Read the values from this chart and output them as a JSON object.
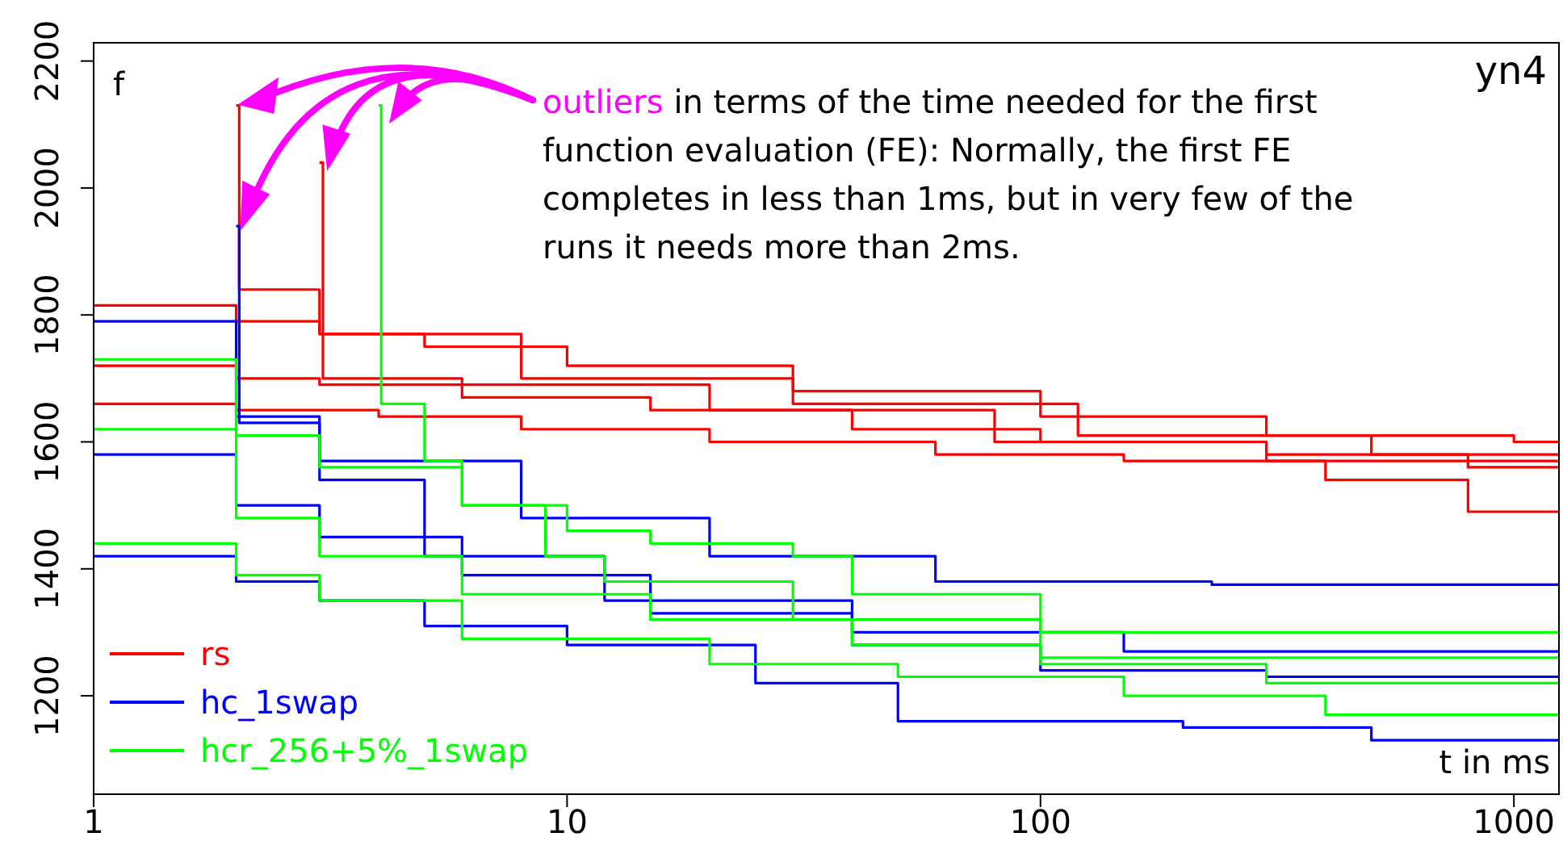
{
  "chart_data": {
    "type": "step",
    "title": "yn4",
    "xlabel": "t in ms",
    "ylabel": "f",
    "log": "x",
    "marker": "none",
    "legend": "bottom left",
    "annotations": [
      "outliers",
      "in terms of the time needed for the first function evaluation (FE): Normally, the first FE completes in less than 1ms, but in very few of the runs it needs more than 2ms."
    ],
    "xlim": [
      1,
      1250
    ],
    "xticks": [
      1,
      10,
      100,
      1000
    ],
    "ylim": [
      1045,
      2230
    ],
    "yticks": [
      1200,
      1400,
      1600,
      1800,
      2000,
      2200
    ],
    "series": [
      {
        "color": "#ff0000",
        "x": [
          1,
          2,
          3,
          5,
          10,
          30,
          100,
          300,
          1000,
          1250
        ],
        "values": [
          1815,
          1790,
          1770,
          1750,
          1720,
          1680,
          1640,
          1610,
          1600,
          1600
        ]
      },
      {
        "color": "#ff0000",
        "x": [
          1,
          2,
          3,
          6,
          15,
          40,
          100,
          300,
          800,
          1250
        ],
        "values": [
          1720,
          1700,
          1690,
          1670,
          1650,
          1620,
          1600,
          1580,
          1560,
          1560
        ]
      },
      {
        "color": "#ff0000",
        "x": [
          1,
          2,
          4,
          8,
          20,
          60,
          150,
          400,
          800,
          1250
        ],
        "values": [
          1660,
          1650,
          1640,
          1620,
          1600,
          1580,
          1570,
          1540,
          1490,
          1490
        ]
      },
      {
        "color": "#ff0000",
        "x": [
          2,
          2.03,
          3,
          8,
          30,
          120,
          500,
          1250
        ],
        "values": [
          2130,
          1840,
          1770,
          1700,
          1660,
          1610,
          1580,
          1580
        ]
      },
      {
        "name": "rs",
        "color": "#ff0000",
        "x": [
          3,
          3.05,
          6,
          20,
          80,
          300,
          1250
        ],
        "values": [
          2040,
          1700,
          1690,
          1650,
          1600,
          1570,
          1570
        ]
      },
      {
        "color": "#0000ff",
        "x": [
          1,
          2,
          3,
          8,
          20,
          60,
          200,
          230,
          1250
        ],
        "values": [
          1790,
          1640,
          1570,
          1480,
          1420,
          1380,
          1380,
          1375,
          1375
        ]
      },
      {
        "color": "#0000ff",
        "x": [
          1,
          2,
          3,
          6,
          15,
          40,
          100,
          300,
          1250
        ],
        "values": [
          1580,
          1500,
          1450,
          1390,
          1330,
          1280,
          1240,
          1230,
          1230
        ]
      },
      {
        "color": "#0000ff",
        "x": [
          1,
          2,
          3,
          5,
          10,
          25,
          50,
          200,
          500,
          1250
        ],
        "values": [
          1420,
          1380,
          1350,
          1310,
          1280,
          1220,
          1160,
          1150,
          1130,
          1130
        ]
      },
      {
        "name": "hc_1swap",
        "color": "#0000ff",
        "x": [
          2,
          2.03,
          3,
          5,
          12,
          40,
          150,
          1250
        ],
        "values": [
          1940,
          1630,
          1540,
          1420,
          1350,
          1300,
          1270,
          1270
        ]
      },
      {
        "color": "#00ff00",
        "x": [
          1,
          2,
          3,
          6,
          10,
          15,
          30,
          40,
          100,
          1250
        ],
        "values": [
          1730,
          1610,
          1560,
          1500,
          1460,
          1440,
          1420,
          1360,
          1300,
          1300
        ]
      },
      {
        "color": "#00ff00",
        "x": [
          1,
          2,
          3,
          6,
          15,
          40,
          100,
          300,
          1250
        ],
        "values": [
          1620,
          1480,
          1420,
          1360,
          1320,
          1280,
          1250,
          1220,
          1220
        ]
      },
      {
        "color": "#00ff00",
        "x": [
          1,
          2,
          3,
          6,
          20,
          50,
          150,
          400,
          1250
        ],
        "values": [
          1440,
          1390,
          1350,
          1290,
          1250,
          1230,
          1200,
          1170,
          1170
        ]
      },
      {
        "name": "hcr_256+5%_1swap",
        "color": "#00ff00",
        "x": [
          4,
          4.05,
          5,
          6,
          9,
          12,
          30,
          100,
          1250
        ],
        "values": [
          2130,
          1660,
          1570,
          1500,
          1420,
          1380,
          1320,
          1260,
          1260
        ]
      }
    ]
  }
}
